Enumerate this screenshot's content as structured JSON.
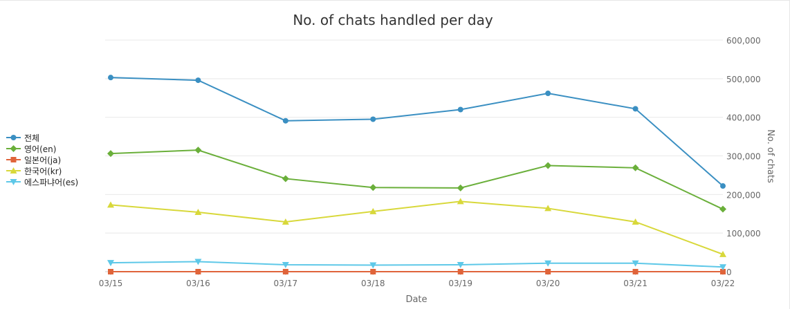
{
  "chart_data": {
    "type": "line",
    "title": "No. of chats handled per day",
    "xlabel": "Date",
    "ylabel": "No. of chats",
    "categories": [
      "03/15",
      "03/16",
      "03/17",
      "03/18",
      "03/19",
      "03/20",
      "03/21",
      "03/22"
    ],
    "ylim": [
      0,
      600000
    ],
    "yticks": [
      0,
      100000,
      200000,
      300000,
      400000,
      500000,
      600000
    ],
    "ytick_labels": [
      "0",
      "100,000",
      "200,000",
      "300,000",
      "400,000",
      "500,000",
      "600,000"
    ],
    "y_axis_side": "right",
    "grid": true,
    "legend_position": "left",
    "series": [
      {
        "name": "전체",
        "color": "#3a8fc2",
        "marker": "circle",
        "values": [
          503000,
          496000,
          391000,
          395000,
          420000,
          462000,
          422000,
          222000
        ]
      },
      {
        "name": "영어(en)",
        "color": "#6aaf3a",
        "marker": "diamond",
        "values": [
          306000,
          315000,
          241000,
          218000,
          217000,
          275000,
          269000,
          162000
        ]
      },
      {
        "name": "일본어(ja)",
        "color": "#e0643a",
        "marker": "square",
        "values": [
          0,
          0,
          0,
          0,
          0,
          0,
          0,
          0
        ]
      },
      {
        "name": "한국어(kr)",
        "color": "#d8d83a",
        "marker": "triangle-up",
        "values": [
          173000,
          154000,
          129000,
          156000,
          182000,
          164000,
          129000,
          45000
        ]
      },
      {
        "name": "에스파냐어(es)",
        "color": "#5ec8e8",
        "marker": "triangle-down",
        "values": [
          23000,
          26000,
          18000,
          17000,
          18000,
          22000,
          22000,
          12000
        ]
      }
    ]
  }
}
